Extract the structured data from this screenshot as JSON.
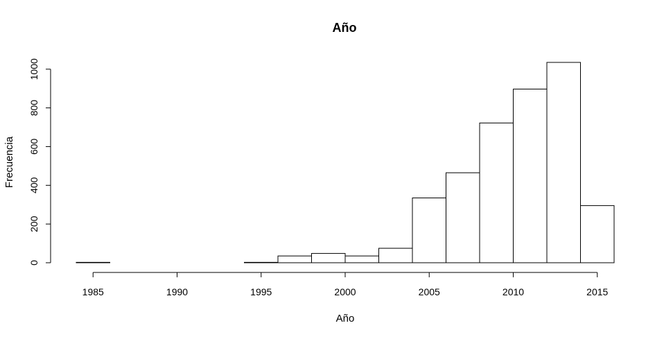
{
  "chart_data": {
    "type": "bar",
    "title": "Año",
    "xlabel": "Año",
    "ylabel": "Frecuencia",
    "bins": [
      {
        "start": 1984,
        "end": 1986,
        "value": 2
      },
      {
        "start": 1986,
        "end": 1988,
        "value": 0
      },
      {
        "start": 1988,
        "end": 1990,
        "value": 0
      },
      {
        "start": 1990,
        "end": 1992,
        "value": 0
      },
      {
        "start": 1992,
        "end": 1994,
        "value": 0
      },
      {
        "start": 1994,
        "end": 1996,
        "value": 2
      },
      {
        "start": 1996,
        "end": 1998,
        "value": 35
      },
      {
        "start": 1998,
        "end": 2000,
        "value": 48
      },
      {
        "start": 2000,
        "end": 2002,
        "value": 35
      },
      {
        "start": 2002,
        "end": 2004,
        "value": 75
      },
      {
        "start": 2004,
        "end": 2006,
        "value": 335
      },
      {
        "start": 2006,
        "end": 2008,
        "value": 465
      },
      {
        "start": 2008,
        "end": 2010,
        "value": 722
      },
      {
        "start": 2010,
        "end": 2012,
        "value": 897
      },
      {
        "start": 2012,
        "end": 2014,
        "value": 1035
      },
      {
        "start": 2014,
        "end": 2016,
        "value": 295
      }
    ],
    "xlim": [
      1984,
      2016
    ],
    "ylim": [
      0,
      1035
    ],
    "x_ticks": [
      1985,
      1990,
      1995,
      2000,
      2005,
      2010,
      2015
    ],
    "y_ticks": [
      0,
      200,
      400,
      600,
      800,
      1000
    ],
    "grid": false,
    "legend": "none"
  }
}
